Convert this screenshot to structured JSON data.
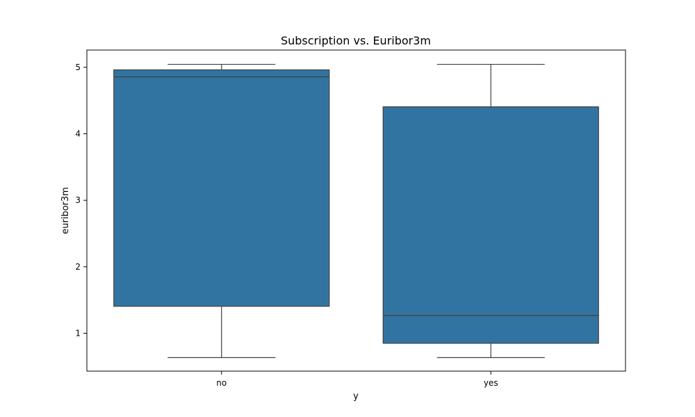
{
  "chart_data": {
    "type": "box",
    "title": "Subscription vs. Euribor3m",
    "xlabel": "y",
    "ylabel": "euribor3m",
    "categories": [
      "no",
      "yes"
    ],
    "boxes": [
      {
        "category": "no",
        "whisker_low": 0.634,
        "q1": 1.405,
        "median": 4.857,
        "q3": 4.962,
        "whisker_high": 5.045
      },
      {
        "category": "yes",
        "whisker_low": 0.634,
        "q1": 0.849,
        "median": 1.266,
        "q3": 4.406,
        "whisker_high": 5.045
      }
    ],
    "ylim": [
      0.43,
      5.26
    ],
    "yticks": [
      1,
      2,
      3,
      4,
      5
    ],
    "grid": false,
    "colors": {
      "box_fill": "#3274a1",
      "line": "#3f3f3f",
      "axes": "#000000"
    }
  }
}
